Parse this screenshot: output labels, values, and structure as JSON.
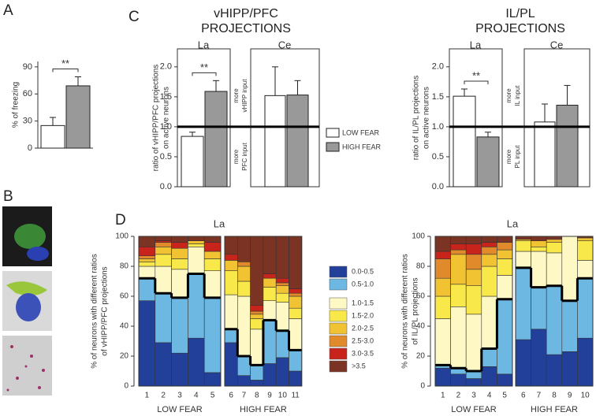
{
  "panels": [
    "A",
    "B",
    "C",
    "D"
  ],
  "group_titles": [
    [
      "vHIPP/PFC",
      "PROJECTIONS"
    ],
    [
      "IL/PL",
      "PROJECTIONS"
    ]
  ],
  "legend": [
    {
      "name": "LOW FEAR",
      "color": "#ffffff"
    },
    {
      "name": "HIGH FEAR",
      "color": "#999999"
    }
  ],
  "chart_data": [
    {
      "type": "bar",
      "ylabel": [
        "% of freezing"
      ],
      "categories": [
        null,
        null
      ],
      "values": [
        25,
        69
      ],
      "errors": [
        9,
        10
      ],
      "ylim": [
        0,
        96
      ],
      "yticks": [
        0,
        30,
        60,
        90
      ],
      "annotation": "**"
    },
    {
      "type": "bar",
      "title": "La",
      "ylabel": [
        "ratio of vHIPP/PFC projections",
        "on active neurons"
      ],
      "categories": [
        null,
        null
      ],
      "values": [
        0.84,
        1.59
      ],
      "errors": [
        0.07,
        0.18
      ],
      "ylim": [
        0,
        2.3
      ],
      "yticks": [
        {
          "value": 0,
          "label": "0.0"
        },
        {
          "value": 0.5,
          "label": "0.5"
        },
        {
          "value": 1,
          "label": "1.0"
        },
        {
          "value": 1.5,
          "label": "1.5"
        },
        {
          "value": 2,
          "label": "2.0"
        }
      ],
      "reference_line": 1,
      "annotation": "**"
    },
    {
      "type": "bar",
      "title": "Ce",
      "categories": [
        null,
        null
      ],
      "values": [
        1.52,
        1.53
      ],
      "errors": [
        0.48,
        0.24
      ],
      "ylim": [
        0,
        2.3
      ],
      "reference_line": 1,
      "annotations": [
        [
          "more",
          "vHIPP input"
        ],
        [
          "more",
          "PFC input"
        ]
      ]
    },
    {
      "type": "bar",
      "title": "La",
      "ylabel": [
        "ratio of IL/PL projections",
        "on active neurons"
      ],
      "categories": [
        null,
        null
      ],
      "values": [
        1.51,
        0.83
      ],
      "errors": [
        0.12,
        0.08
      ],
      "ylim": [
        0,
        2.3
      ],
      "yticks": [
        {
          "value": 0,
          "label": "0.0"
        },
        {
          "value": 0.5,
          "label": "0.5"
        },
        {
          "value": 1,
          "label": "1.0"
        },
        {
          "value": 1.5,
          "label": "1.5"
        },
        {
          "value": 2,
          "label": "2.0"
        }
      ],
      "reference_line": 1,
      "annotation": "**"
    },
    {
      "type": "bar",
      "title": "Ce",
      "categories": [
        null,
        null
      ],
      "values": [
        1.08,
        1.36
      ],
      "errors": [
        0.3,
        0.33
      ],
      "ylim": [
        0,
        2.3
      ],
      "reference_line": 1,
      "annotations": [
        [
          "more",
          "IL input"
        ],
        [
          "more",
          "PL input"
        ]
      ]
    },
    {
      "type": "stacked_bar",
      "title": "La",
      "ylabel": [
        "% of neurons with different ratios",
        "of vHIPP/PFC projections"
      ],
      "categories": [
        "1",
        "2",
        "3",
        "4",
        "5",
        "6",
        "7",
        "8",
        "9",
        "10",
        "11"
      ],
      "group_labels": [
        "LOW FEAR",
        "HIGH FEAR"
      ],
      "ylim": [
        0,
        100
      ],
      "yticks": [
        0,
        20,
        40,
        60,
        80,
        100
      ],
      "series": [
        {
          "name": "0.0-0.5",
          "color": "#22409a",
          "values": [
            57,
            29,
            22,
            32,
            9,
            29,
            7,
            4,
            15,
            19,
            10
          ]
        },
        {
          "name": "0.5-1.0",
          "color": "#6db7e3",
          "values": [
            15,
            33,
            37,
            43,
            50,
            9,
            13,
            10,
            29,
            18,
            14
          ]
        },
        {
          "name": "1.0-1.5",
          "color": "#fdf8c4",
          "values": [
            8,
            18,
            19,
            18,
            18,
            23,
            40,
            24,
            13,
            19,
            21
          ]
        },
        {
          "name": "1.5-2.0",
          "color": "#f9e84a",
          "values": [
            3,
            8,
            7,
            2,
            8,
            16,
            10,
            7,
            9,
            6,
            7
          ]
        },
        {
          "name": "2.0-2.5",
          "color": "#f1c232",
          "values": [
            2,
            5,
            7,
            2,
            5,
            7,
            10,
            3,
            6,
            5,
            8
          ]
        },
        {
          "name": "2.5-3.0",
          "color": "#e08a2c",
          "values": [
            2,
            3,
            0,
            0,
            0,
            0,
            3,
            2,
            0,
            2,
            2
          ]
        },
        {
          "name": "3.0-3.5",
          "color": "#c8241c",
          "values": [
            6,
            1,
            4,
            0,
            6,
            4,
            0,
            4,
            3,
            3,
            3
          ]
        },
        {
          "name": ">3.5",
          "color": "#7b3424",
          "values": [
            7,
            3,
            4,
            3,
            4,
            12,
            17,
            46,
            25,
            28,
            35
          ]
        }
      ]
    },
    {
      "type": "stacked_bar",
      "title": "La",
      "ylabel": [
        "% of neurons with different ratios",
        "of IL/PL projections"
      ],
      "categories": [
        "1",
        "2",
        "3",
        "4",
        "5",
        "6",
        "7",
        "8",
        "9",
        "10"
      ],
      "group_labels": [
        "LOW FEAR",
        "HIGH FEAR"
      ],
      "ylim": [
        0,
        100
      ],
      "yticks": [
        0,
        20,
        40,
        60,
        80,
        100
      ],
      "series": [
        {
          "color": "#22409a",
          "values": [
            12,
            8,
            5,
            13,
            8,
            31,
            38,
            21,
            23,
            32
          ]
        },
        {
          "color": "#6db7e3",
          "values": [
            2,
            4,
            5,
            12,
            50,
            48,
            28,
            46,
            34,
            40
          ]
        },
        {
          "color": "#fdf8c4",
          "values": [
            31,
            41,
            38,
            35,
            16,
            11,
            24,
            22,
            43,
            12
          ]
        },
        {
          "color": "#f9e84a",
          "values": [
            15,
            15,
            19,
            20,
            11,
            7,
            3,
            7,
            0,
            13
          ]
        },
        {
          "color": "#f1c232",
          "values": [
            12,
            20,
            11,
            8,
            6,
            1,
            4,
            2,
            0,
            2
          ]
        },
        {
          "color": "#e08a2c",
          "values": [
            13,
            3,
            10,
            5,
            5,
            0,
            0,
            0,
            0,
            0
          ]
        },
        {
          "color": "#c8241c",
          "values": [
            5,
            4,
            7,
            3,
            0,
            0,
            0,
            0,
            0,
            0
          ]
        },
        {
          "color": "#7b3424",
          "values": [
            10,
            5,
            5,
            4,
            4,
            2,
            3,
            2,
            0,
            1
          ]
        }
      ]
    }
  ]
}
